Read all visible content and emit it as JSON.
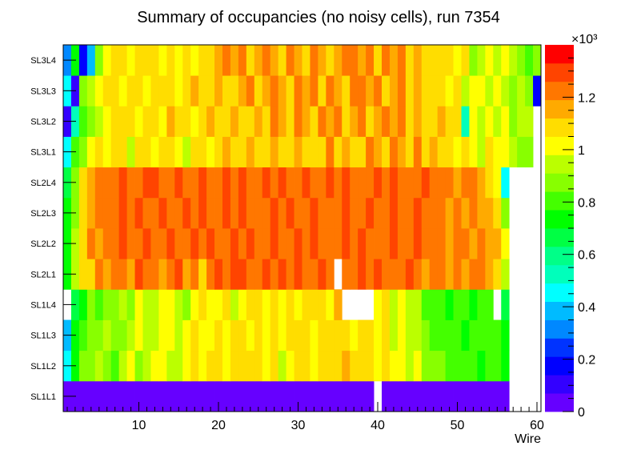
{
  "chart_data": {
    "type": "heatmap",
    "title": "Summary of occupancies (no noisy cells), run 7354",
    "xlabel": "Wire",
    "ylabel": "",
    "xlim": [
      0.5,
      60.5
    ],
    "x_ticks": [
      10,
      20,
      30,
      40,
      50,
      60
    ],
    "x_tick_labels": [
      "10",
      "20",
      "30",
      "40",
      "50",
      "60"
    ],
    "rows": [
      "SL1L1",
      "SL1L2",
      "SL1L3",
      "SL1L4",
      "SL2L1",
      "SL2L2",
      "SL2L3",
      "SL2L4",
      "SL3L1",
      "SL3L2",
      "SL3L3",
      "SL3L4"
    ],
    "colorbar": {
      "zlim": [
        0,
        1.4
      ],
      "tick_values": [
        0,
        0.2,
        0.4,
        0.6,
        0.8,
        1,
        1.2
      ],
      "tick_labels": [
        "0",
        "0.2",
        "0.4",
        "0.6",
        "0.8",
        "1",
        "1.2"
      ],
      "multiplier_label": "×10³",
      "palette": [
        "#6600ff",
        "#3300ff",
        "#0000ff",
        "#0033ff",
        "#0088ff",
        "#00bbff",
        "#00ffff",
        "#00ffbb",
        "#00ff88",
        "#00ff44",
        "#00ff00",
        "#44ff00",
        "#88ff00",
        "#bbff00",
        "#ffff00",
        "#ffdd00",
        "#ffaa00",
        "#ff7700",
        "#ff4400",
        "#ff0000"
      ]
    },
    "values": [
      [
        0.06,
        0.06,
        0.06,
        0.06,
        0.06,
        0.06,
        0.06,
        0.06,
        0.06,
        0.06,
        0.06,
        0.06,
        0.06,
        0.06,
        0.06,
        0.06,
        0.06,
        0.06,
        0.06,
        0.06,
        0.06,
        0.06,
        0.06,
        0.06,
        0.06,
        0.06,
        0.06,
        0.06,
        0.06,
        0.06,
        0.06,
        0.06,
        0.06,
        0.06,
        0.06,
        0.06,
        0.06,
        0.06,
        0.06,
        null,
        0.06,
        0.06,
        0.06,
        0.06,
        0.06,
        0.06,
        0.06,
        0.06,
        0.06,
        0.06,
        0.06,
        0.06,
        0.06,
        0.06,
        0.06,
        0.06,
        null,
        null,
        null,
        null
      ],
      [
        0.45,
        0.75,
        0.85,
        0.9,
        0.95,
        0.85,
        0.8,
        0.95,
        1.0,
        0.9,
        0.95,
        0.98,
        1.0,
        0.92,
        0.95,
        1.0,
        1.05,
        1.0,
        1.05,
        1.1,
        1.0,
        1.05,
        1.1,
        1.05,
        1.08,
        1.02,
        1.05,
        0.95,
        1.0,
        1.05,
        1.1,
        1.0,
        1.05,
        1.08,
        1.1,
        1.12,
        1.08,
        1.05,
        1.1,
        1.0,
        1.05,
        0.98,
        1.02,
        0.95,
        1.0,
        0.9,
        0.88,
        0.85,
        0.82,
        0.8,
        0.78,
        0.8,
        0.75,
        0.82,
        0.8,
        0.7,
        null,
        null,
        null,
        null
      ],
      [
        0.4,
        0.7,
        0.8,
        0.9,
        0.85,
        0.92,
        0.9,
        0.88,
        0.95,
        1.0,
        0.92,
        0.95,
        1.0,
        0.98,
        0.95,
        1.0,
        1.05,
        1.0,
        1.02,
        1.05,
        1.0,
        1.08,
        1.05,
        1.0,
        1.1,
        1.02,
        1.05,
        1.0,
        1.05,
        1.1,
        1.05,
        1.0,
        1.08,
        1.1,
        1.05,
        1.08,
        1.0,
        1.05,
        1.1,
        1.0,
        1.05,
        0.95,
        1.0,
        0.92,
        0.95,
        0.85,
        0.82,
        0.8,
        0.78,
        0.8,
        0.75,
        0.8,
        0.78,
        0.82,
        0.8,
        0.7,
        null,
        null,
        null,
        null
      ],
      [
        null,
        0.65,
        0.75,
        0.85,
        0.8,
        0.9,
        0.85,
        0.95,
        0.9,
        1.0,
        0.95,
        0.92,
        1.0,
        0.98,
        0.95,
        0.9,
        1.0,
        1.05,
        1.0,
        1.02,
        1.05,
        0.95,
        1.0,
        1.08,
        1.05,
        1.0,
        1.1,
        1.0,
        1.05,
        1.02,
        1.08,
        1.05,
        1.1,
        1.0,
        1.12,
        null,
        null,
        null,
        null,
        1.02,
        1.05,
        0.95,
        1.0,
        0.92,
        0.95,
        0.8,
        0.78,
        0.8,
        0.75,
        0.78,
        0.8,
        0.75,
        0.78,
        0.82,
        null,
        0.65,
        null,
        null,
        null,
        null
      ],
      [
        0.7,
        0.95,
        1.05,
        1.1,
        1.2,
        1.15,
        1.25,
        1.2,
        1.15,
        1.3,
        1.2,
        1.25,
        1.15,
        1.2,
        1.3,
        1.15,
        1.2,
        1.1,
        1.25,
        1.3,
        1.25,
        1.3,
        1.28,
        1.25,
        1.2,
        1.3,
        1.22,
        1.28,
        1.25,
        1.3,
        1.2,
        1.25,
        1.28,
        1.22,
        null,
        1.25,
        1.2,
        1.28,
        1.25,
        1.3,
        1.22,
        1.25,
        1.2,
        1.28,
        1.25,
        1.15,
        1.2,
        1.22,
        1.18,
        1.2,
        1.15,
        1.2,
        1.25,
        1.15,
        1.1,
        0.95,
        null,
        null,
        null,
        null
      ],
      [
        0.75,
        0.95,
        1.05,
        1.2,
        1.15,
        1.25,
        1.2,
        1.3,
        1.25,
        1.2,
        1.3,
        1.25,
        1.2,
        1.3,
        1.25,
        1.22,
        1.28,
        1.2,
        1.3,
        1.25,
        1.2,
        1.28,
        1.22,
        1.3,
        1.25,
        1.2,
        1.3,
        1.25,
        1.22,
        1.28,
        1.25,
        1.3,
        1.22,
        1.25,
        1.2,
        1.28,
        1.25,
        1.3,
        1.22,
        1.25,
        1.2,
        1.28,
        1.25,
        1.22,
        1.3,
        1.2,
        1.25,
        1.22,
        1.18,
        1.25,
        1.2,
        1.15,
        1.2,
        1.18,
        1.12,
        1.0,
        null,
        null,
        null,
        null
      ],
      [
        0.7,
        0.9,
        1.1,
        1.15,
        1.2,
        1.25,
        1.22,
        1.28,
        1.2,
        1.3,
        1.25,
        1.22,
        1.3,
        1.25,
        1.2,
        1.28,
        1.25,
        1.3,
        1.22,
        1.2,
        1.28,
        1.25,
        1.3,
        1.22,
        1.25,
        1.2,
        1.3,
        1.25,
        1.28,
        1.22,
        1.25,
        1.3,
        1.2,
        1.25,
        1.22,
        1.28,
        1.25,
        1.2,
        1.3,
        1.25,
        1.22,
        1.28,
        1.25,
        1.2,
        1.3,
        1.22,
        1.25,
        1.2,
        1.15,
        1.2,
        1.18,
        1.22,
        1.15,
        1.12,
        1.05,
        0.9,
        null,
        null,
        null,
        null
      ],
      [
        0.65,
        0.9,
        1.05,
        1.15,
        1.2,
        1.25,
        1.2,
        1.3,
        1.25,
        1.22,
        1.28,
        1.3,
        1.25,
        1.2,
        1.28,
        1.25,
        1.22,
        1.3,
        1.25,
        1.2,
        1.28,
        1.25,
        1.3,
        1.22,
        1.25,
        1.3,
        1.2,
        1.28,
        1.25,
        1.22,
        1.3,
        1.25,
        1.2,
        1.28,
        1.25,
        1.3,
        1.22,
        1.25,
        1.2,
        1.28,
        1.25,
        1.3,
        1.22,
        1.25,
        1.2,
        1.28,
        1.25,
        1.2,
        1.22,
        1.18,
        1.2,
        1.25,
        1.15,
        1.1,
        1.0,
        0.45,
        null,
        null,
        null,
        null
      ],
      [
        0.45,
        0.8,
        0.9,
        1.0,
        1.05,
        1.0,
        1.1,
        1.05,
        0.95,
        1.1,
        1.05,
        1.0,
        1.1,
        1.05,
        1.0,
        0.95,
        1.05,
        1.1,
        1.0,
        1.05,
        1.15,
        1.05,
        1.1,
        1.15,
        1.05,
        1.1,
        1.15,
        1.1,
        1.05,
        1.15,
        1.1,
        1.05,
        1.1,
        1.2,
        1.1,
        1.15,
        1.05,
        1.1,
        1.2,
        1.15,
        1.1,
        1.2,
        1.15,
        1.1,
        1.2,
        1.1,
        1.15,
        1.1,
        1.05,
        1.0,
        1.05,
        1.0,
        0.95,
        1.05,
        1.0,
        1.0,
        0.95,
        0.85,
        0.85,
        null
      ],
      [
        0.1,
        0.5,
        0.8,
        0.9,
        0.95,
        1.0,
        1.05,
        1.1,
        1.05,
        1.0,
        1.1,
        1.05,
        1.0,
        1.15,
        1.05,
        1.1,
        1.0,
        1.1,
        1.15,
        1.05,
        1.1,
        1.15,
        1.1,
        1.05,
        1.15,
        1.1,
        1.2,
        1.15,
        1.1,
        1.2,
        1.15,
        1.1,
        1.2,
        1.15,
        1.25,
        1.1,
        1.15,
        1.2,
        1.1,
        1.15,
        1.25,
        1.15,
        1.2,
        1.1,
        1.15,
        1.05,
        1.1,
        1.15,
        1.05,
        1.1,
        0.5,
        1.0,
        0.95,
        1.0,
        0.95,
        1.0,
        0.9,
        0.95,
        0.95,
        null
      ],
      [
        0.45,
        0.1,
        0.85,
        0.95,
        1.0,
        1.05,
        1.1,
        1.0,
        1.05,
        1.1,
        1.0,
        1.05,
        1.1,
        1.05,
        1.0,
        1.1,
        1.15,
        1.05,
        1.1,
        1.15,
        1.1,
        1.05,
        1.15,
        1.2,
        1.1,
        1.15,
        1.2,
        1.15,
        1.1,
        1.2,
        1.15,
        1.25,
        1.1,
        1.2,
        1.15,
        1.1,
        1.2,
        1.25,
        1.15,
        1.2,
        1.1,
        1.15,
        1.2,
        1.1,
        1.15,
        1.1,
        1.05,
        1.1,
        1.0,
        1.05,
        0.95,
        1.0,
        1.0,
        0.95,
        1.0,
        0.95,
        0.9,
        0.95,
        0.85,
        0.15
      ],
      [
        0.3,
        0.7,
        0.15,
        0.4,
        0.9,
        1.0,
        1.1,
        1.05,
        1.0,
        1.05,
        1.1,
        1.05,
        1.0,
        1.05,
        1.0,
        1.05,
        1.0,
        1.05,
        1.1,
        1.15,
        1.2,
        1.15,
        1.2,
        1.1,
        1.15,
        1.2,
        1.15,
        1.1,
        1.2,
        1.15,
        1.1,
        1.2,
        1.15,
        1.1,
        1.15,
        1.2,
        1.25,
        1.15,
        1.2,
        1.1,
        1.2,
        1.15,
        1.2,
        1.1,
        1.15,
        1.1,
        1.05,
        1.1,
        1.05,
        1.0,
        1.05,
        0.9,
        0.95,
        1.0,
        0.95,
        1.0,
        0.95,
        0.9,
        0.8,
        0.9
      ]
    ]
  }
}
